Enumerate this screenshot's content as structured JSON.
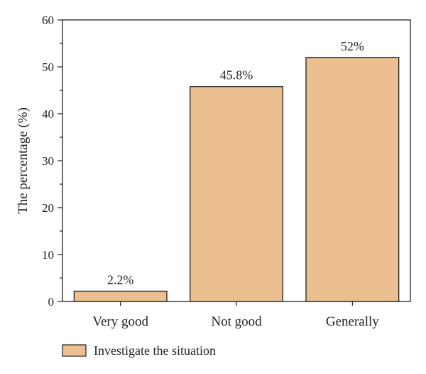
{
  "chart_data": {
    "type": "bar",
    "categories": [
      "Very good",
      "Not good",
      "Generally"
    ],
    "series": [
      {
        "name": "Investigate the situation",
        "values": [
          2.2,
          45.8,
          52
        ],
        "labels": [
          "2.2%",
          "45.8%",
          "52%"
        ]
      }
    ],
    "title": "",
    "xlabel": "",
    "ylabel": "The percentage (%)",
    "ylim": [
      0,
      60
    ],
    "yticks": [
      0,
      10,
      20,
      30,
      40,
      50,
      60
    ],
    "grid": false,
    "legend_position": "bottom-left",
    "colors": {
      "bar_fill": "#ebbf90",
      "bar_stroke": "#231f20",
      "axis": "#231f20"
    }
  }
}
